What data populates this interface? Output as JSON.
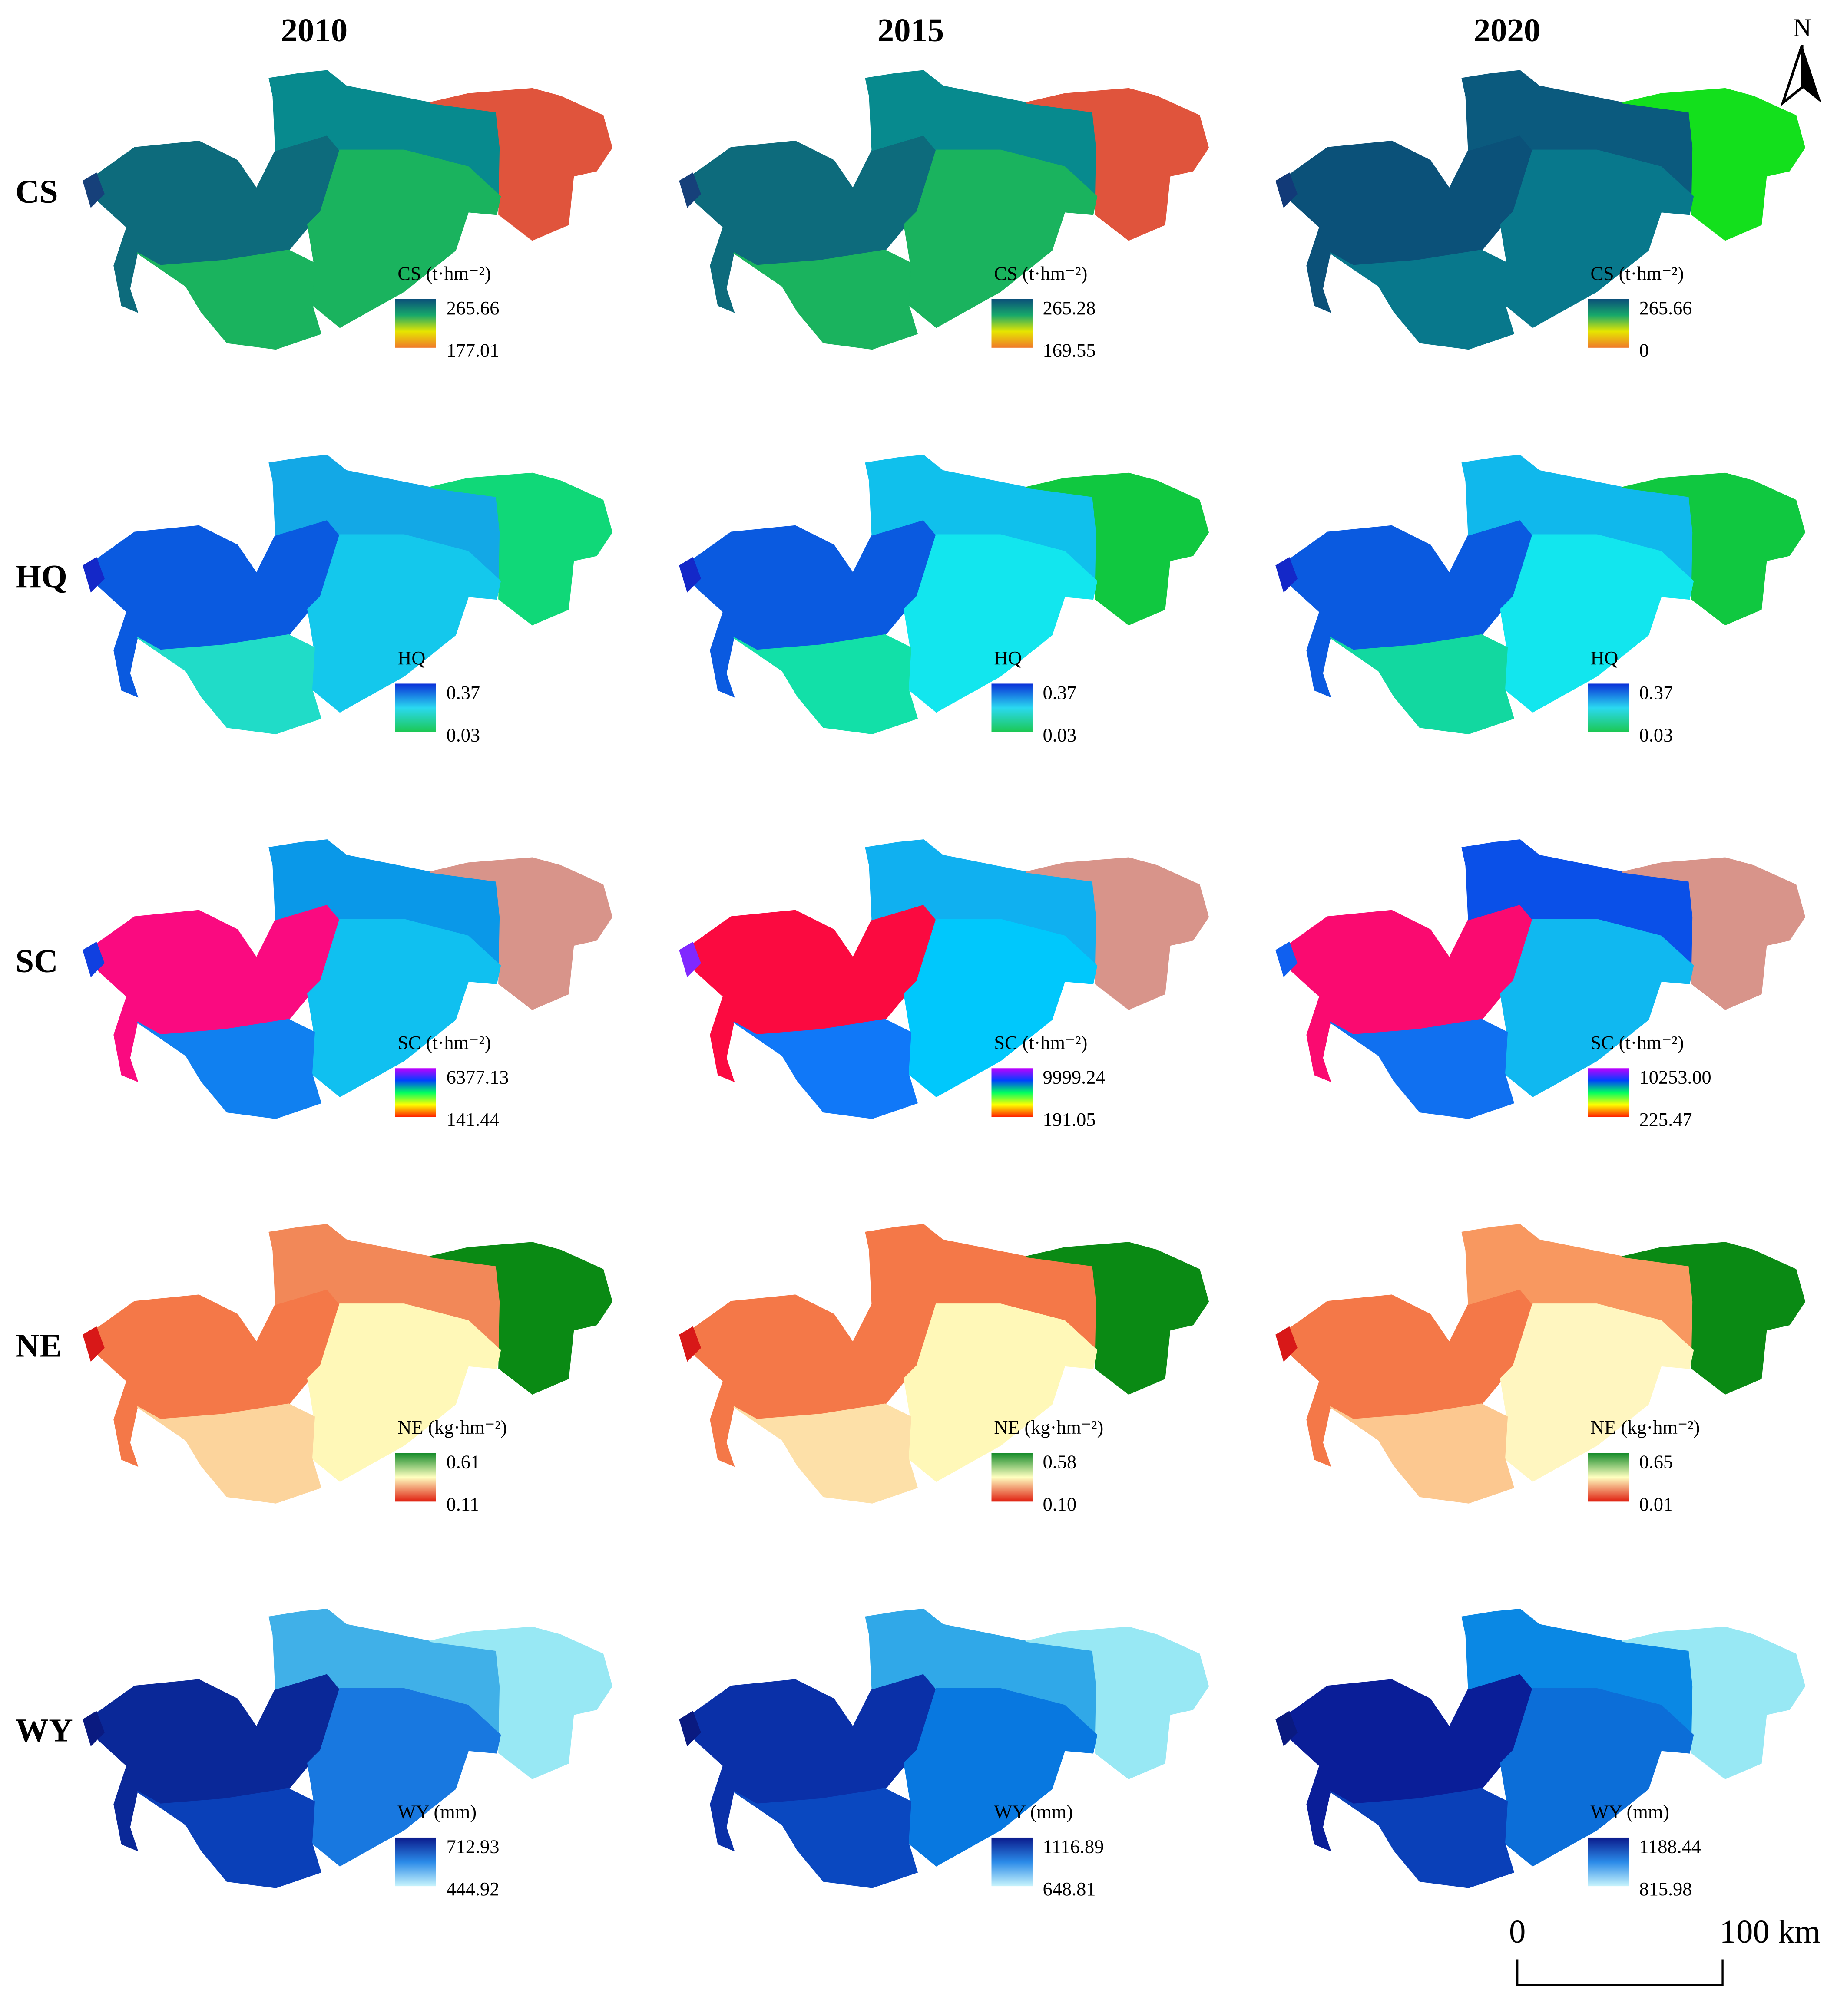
{
  "years": [
    "2010",
    "2015",
    "2020"
  ],
  "north": "N",
  "scale": {
    "start": "0",
    "end": "100 km"
  },
  "rows": [
    {
      "label": "CS",
      "legend": "CS (t·hm⁻²)",
      "ramp": [
        "#0b4f7a",
        "#17a86a",
        "#e6e600",
        "#f07a2a"
      ],
      "panels": [
        {
          "max": "265.66",
          "min": "177.01",
          "fills": [
            "#0d6b7c",
            "#078a8e",
            "#e0543c",
            "#1ab35e",
            "#1ab35e",
            "#16407a"
          ]
        },
        {
          "max": "265.28",
          "min": "169.55",
          "fills": [
            "#0d6b7c",
            "#078a8e",
            "#e0543c",
            "#1ab35e",
            "#1ab35e",
            "#16407a"
          ]
        },
        {
          "max": "265.66",
          "min": "0",
          "fills": [
            "#0b5179",
            "#0b5a7e",
            "#13e01c",
            "#08788c",
            "#08788c",
            "#123a78"
          ]
        }
      ]
    },
    {
      "label": "HQ",
      "legend": "HQ",
      "ramp": [
        "#0a30d8",
        "#2ad9f0",
        "#1cc850"
      ],
      "panels": [
        {
          "max": "0.37",
          "min": "0.03",
          "fills": [
            "#0a5ae0",
            "#13a8e6",
            "#10d878",
            "#14c8ec",
            "#20dcc8",
            "#1428c8"
          ]
        },
        {
          "max": "0.37",
          "min": "0.03",
          "fills": [
            "#0a5ae0",
            "#10c0ec",
            "#10c840",
            "#12e6ee",
            "#12e0a8",
            "#1428c8"
          ]
        },
        {
          "max": "0.37",
          "min": "0.03",
          "fills": [
            "#0a5ae0",
            "#10b8ec",
            "#10c840",
            "#12e6ee",
            "#12d8a0",
            "#1428c8"
          ]
        }
      ]
    },
    {
      "label": "SC",
      "legend": "SC (t·hm⁻²)",
      "ramp": [
        "#c000ff",
        "#0040ff",
        "#00ff60",
        "#ffff00",
        "#ff2000"
      ],
      "panels": [
        {
          "max": "6377.13",
          "min": "141.44",
          "fills": [
            "#fa0a80",
            "#0a98e8",
            "#d8948a",
            "#10c0f0",
            "#1080f0",
            "#1040e0"
          ]
        },
        {
          "max": "9999.24",
          "min": "191.05",
          "fills": [
            "#fb0a40",
            "#10b0f0",
            "#d8948a",
            "#00c8fc",
            "#1078f8",
            "#8028ff"
          ]
        },
        {
          "max": "10253.00",
          "min": "225.47",
          "fills": [
            "#fa0a70",
            "#0a50e8",
            "#d8948a",
            "#10b8f0",
            "#1070f0",
            "#1060f0"
          ]
        }
      ]
    },
    {
      "label": "NE",
      "legend": "NE (kg·hm⁻²)",
      "ramp": [
        "#128a28",
        "#ffffc0",
        "#e02010"
      ],
      "panels": [
        {
          "max": "0.61",
          "min": "0.11",
          "fills": [
            "#f47848",
            "#f28858",
            "#0a8a14",
            "#fff8b8",
            "#fcd49c",
            "#d81818"
          ]
        },
        {
          "max": "0.58",
          "min": "0.10",
          "fills": [
            "#f47848",
            "#f47848",
            "#0a8a14",
            "#fff8b8",
            "#fde0a8",
            "#d81818"
          ]
        },
        {
          "max": "0.65",
          "min": "0.01",
          "fills": [
            "#f47848",
            "#f89860",
            "#0a8a14",
            "#fff6c0",
            "#fcc890",
            "#d81818"
          ]
        }
      ]
    },
    {
      "label": "WY",
      "legend": "WY (mm)",
      "ramp": [
        "#0a1a8c",
        "#2a8ae8",
        "#c8f4fc"
      ],
      "panels": [
        {
          "max": "712.93",
          "min": "444.92",
          "fills": [
            "#0a2898",
            "#40b0e8",
            "#98e8f4",
            "#1878e0",
            "#0a40b8",
            "#0a1a80"
          ]
        },
        {
          "max": "1116.89",
          "min": "648.81",
          "fills": [
            "#0a30a8",
            "#30a8e8",
            "#98e8f4",
            "#0878e0",
            "#0a48c0",
            "#0a1a80"
          ]
        },
        {
          "max": "1188.44",
          "min": "815.98",
          "fills": [
            "#0a1e98",
            "#0a88e4",
            "#98e8f4",
            "#0c6ed8",
            "#0a40b8",
            "#0a1a80"
          ]
        }
      ]
    }
  ]
}
